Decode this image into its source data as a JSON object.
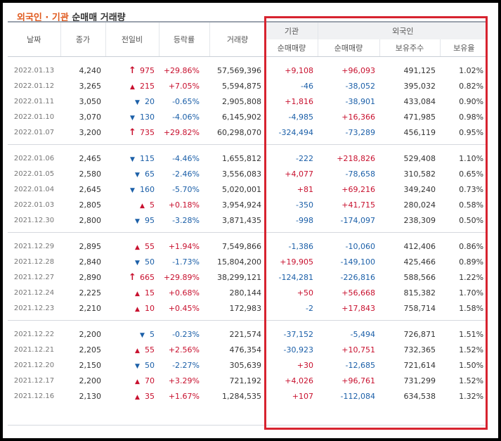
{
  "title": {
    "part1": "외국인 · 기관",
    "part2": " 순매매 거래량"
  },
  "headers": {
    "date": "날짜",
    "close": "종가",
    "change": "전일비",
    "rate": "등락률",
    "volume": "거래량",
    "institution": "기관",
    "foreign": "외국인",
    "inst_net": "순매매량",
    "foreign_net": "순매매량",
    "holdings": "보유주수",
    "ratio": "보유율"
  },
  "colors": {
    "up": "#c8102e",
    "down": "#1b5fa8",
    "highlight_box": "#d7232f"
  },
  "groups": [
    {
      "rows": [
        {
          "date": "2022.01.13",
          "close": "4,240",
          "arrow": "upper-limit",
          "change": "975",
          "rate": "+29.86%",
          "volume": "57,569,396",
          "inst": "+9,108",
          "foreign": "+96,093",
          "holdings": "491,125",
          "ratio": "1.02%"
        },
        {
          "date": "2022.01.12",
          "close": "3,265",
          "arrow": "up",
          "change": "215",
          "rate": "+7.05%",
          "volume": "5,594,875",
          "inst": "-46",
          "foreign": "-38,052",
          "holdings": "395,032",
          "ratio": "0.82%"
        },
        {
          "date": "2022.01.11",
          "close": "3,050",
          "arrow": "down",
          "change": "20",
          "rate": "-0.65%",
          "volume": "2,905,808",
          "inst": "+1,816",
          "foreign": "-38,901",
          "holdings": "433,084",
          "ratio": "0.90%"
        },
        {
          "date": "2022.01.10",
          "close": "3,070",
          "arrow": "down",
          "change": "130",
          "rate": "-4.06%",
          "volume": "6,145,902",
          "inst": "-4,985",
          "foreign": "+16,366",
          "holdings": "471,985",
          "ratio": "0.98%"
        },
        {
          "date": "2022.01.07",
          "close": "3,200",
          "arrow": "upper-limit",
          "change": "735",
          "rate": "+29.82%",
          "volume": "60,298,070",
          "inst": "-324,494",
          "foreign": "-73,289",
          "holdings": "456,119",
          "ratio": "0.95%"
        }
      ]
    },
    {
      "rows": [
        {
          "date": "2022.01.06",
          "close": "2,465",
          "arrow": "down",
          "change": "115",
          "rate": "-4.46%",
          "volume": "1,655,812",
          "inst": "-222",
          "foreign": "+218,826",
          "holdings": "529,408",
          "ratio": "1.10%"
        },
        {
          "date": "2022.01.05",
          "close": "2,580",
          "arrow": "down",
          "change": "65",
          "rate": "-2.46%",
          "volume": "3,556,083",
          "inst": "+4,077",
          "foreign": "-78,658",
          "holdings": "310,582",
          "ratio": "0.65%"
        },
        {
          "date": "2022.01.04",
          "close": "2,645",
          "arrow": "down",
          "change": "160",
          "rate": "-5.70%",
          "volume": "5,020,001",
          "inst": "+81",
          "foreign": "+69,216",
          "holdings": "349,240",
          "ratio": "0.73%"
        },
        {
          "date": "2022.01.03",
          "close": "2,805",
          "arrow": "up",
          "change": "5",
          "rate": "+0.18%",
          "volume": "3,954,924",
          "inst": "-350",
          "foreign": "+41,715",
          "holdings": "280,024",
          "ratio": "0.58%"
        },
        {
          "date": "2021.12.30",
          "close": "2,800",
          "arrow": "down",
          "change": "95",
          "rate": "-3.28%",
          "volume": "3,871,435",
          "inst": "-998",
          "foreign": "-174,097",
          "holdings": "238,309",
          "ratio": "0.50%"
        }
      ]
    },
    {
      "rows": [
        {
          "date": "2021.12.29",
          "close": "2,895",
          "arrow": "up",
          "change": "55",
          "rate": "+1.94%",
          "volume": "7,549,866",
          "inst": "-1,386",
          "foreign": "-10,060",
          "holdings": "412,406",
          "ratio": "0.86%"
        },
        {
          "date": "2021.12.28",
          "close": "2,840",
          "arrow": "down",
          "change": "50",
          "rate": "-1.73%",
          "volume": "15,804,200",
          "inst": "+19,905",
          "foreign": "-149,100",
          "holdings": "425,466",
          "ratio": "0.89%"
        },
        {
          "date": "2021.12.27",
          "close": "2,890",
          "arrow": "upper-limit",
          "change": "665",
          "rate": "+29.89%",
          "volume": "38,299,121",
          "inst": "-124,281",
          "foreign": "-226,816",
          "holdings": "588,566",
          "ratio": "1.22%"
        },
        {
          "date": "2021.12.24",
          "close": "2,225",
          "arrow": "up",
          "change": "15",
          "rate": "+0.68%",
          "volume": "280,144",
          "inst": "+50",
          "foreign": "+56,668",
          "holdings": "815,382",
          "ratio": "1.70%"
        },
        {
          "date": "2021.12.23",
          "close": "2,210",
          "arrow": "up",
          "change": "10",
          "rate": "+0.45%",
          "volume": "172,983",
          "inst": "-2",
          "foreign": "+17,843",
          "holdings": "758,714",
          "ratio": "1.58%"
        }
      ]
    },
    {
      "rows": [
        {
          "date": "2021.12.22",
          "close": "2,200",
          "arrow": "down",
          "change": "5",
          "rate": "-0.23%",
          "volume": "221,574",
          "inst": "-37,152",
          "foreign": "-5,494",
          "holdings": "726,871",
          "ratio": "1.51%"
        },
        {
          "date": "2021.12.21",
          "close": "2,205",
          "arrow": "up",
          "change": "55",
          "rate": "+2.56%",
          "volume": "476,354",
          "inst": "-30,923",
          "foreign": "+10,751",
          "holdings": "732,365",
          "ratio": "1.52%"
        },
        {
          "date": "2021.12.20",
          "close": "2,150",
          "arrow": "down",
          "change": "50",
          "rate": "-2.27%",
          "volume": "305,639",
          "inst": "+30",
          "foreign": "-12,685",
          "holdings": "721,614",
          "ratio": "1.50%"
        },
        {
          "date": "2021.12.17",
          "close": "2,200",
          "arrow": "up",
          "change": "70",
          "rate": "+3.29%",
          "volume": "721,192",
          "inst": "+4,026",
          "foreign": "+96,761",
          "holdings": "731,299",
          "ratio": "1.52%"
        },
        {
          "date": "2021.12.16",
          "close": "2,130",
          "arrow": "up",
          "change": "35",
          "rate": "+1.67%",
          "volume": "1,284,535",
          "inst": "+107",
          "foreign": "-112,084",
          "holdings": "634,538",
          "ratio": "1.32%"
        }
      ]
    }
  ]
}
